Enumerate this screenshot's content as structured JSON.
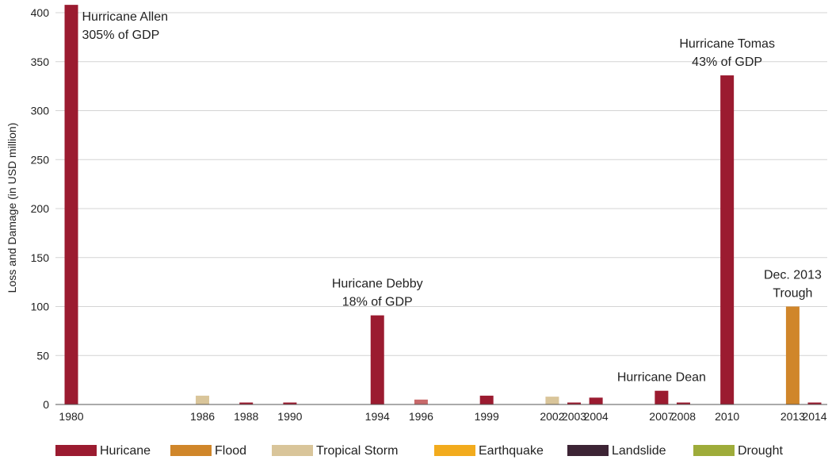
{
  "chart_data": {
    "type": "bar",
    "ylabel": "Loss and Damage (in USD million)",
    "xlabel": "",
    "ylim": [
      0,
      400
    ],
    "yticks": [
      0,
      50,
      100,
      150,
      200,
      250,
      300,
      350,
      400
    ],
    "grid": "horizontal",
    "legend_position": "bottom",
    "categories": [
      "1980",
      "1986",
      "1988",
      "1990",
      "1994",
      "1996",
      "1999",
      "2002",
      "2003",
      "2004",
      "2007",
      "2008",
      "2010",
      "2013",
      "2014"
    ],
    "bars": [
      {
        "year": "1980",
        "value": 408,
        "type": "Huricane"
      },
      {
        "year": "1986",
        "value": 9,
        "type": "Tropical Storm"
      },
      {
        "year": "1988",
        "value": 2,
        "type": "Huricane"
      },
      {
        "year": "1990",
        "value": 2,
        "type": "Huricane"
      },
      {
        "year": "1994",
        "value": 91,
        "type": "Huricane"
      },
      {
        "year": "1996",
        "value": 5,
        "type": "Huricane",
        "color": "#c8696a"
      },
      {
        "year": "1999",
        "value": 9,
        "type": "Huricane"
      },
      {
        "year": "2002",
        "value": 8,
        "type": "Tropical Storm"
      },
      {
        "year": "2003",
        "value": 2,
        "type": "Huricane"
      },
      {
        "year": "2004",
        "value": 7,
        "type": "Huricane"
      },
      {
        "year": "2007",
        "value": 14,
        "type": "Huricane"
      },
      {
        "year": "2008",
        "value": 2,
        "type": "Huricane"
      },
      {
        "year": "2010",
        "value": 336,
        "type": "Huricane"
      },
      {
        "year": "2013",
        "value": 100,
        "type": "Flood"
      },
      {
        "year": "2014",
        "value": 2,
        "type": "Huricane"
      }
    ],
    "legend": [
      {
        "name": "Huricane",
        "color": "#9b1b30"
      },
      {
        "name": "Flood",
        "color": "#d0862a"
      },
      {
        "name": "Tropical Storm",
        "color": "#d9c59a"
      },
      {
        "name": "Earthquake",
        "color": "#f2ab1d"
      },
      {
        "name": "Landslide",
        "color": "#3d2435"
      },
      {
        "name": "Drought",
        "color": "#9eac3a"
      }
    ],
    "annotations": [
      {
        "lines": [
          "Hurricane Allen",
          "305% of GDP"
        ],
        "year": "1980",
        "value": 408,
        "align": "start"
      },
      {
        "lines": [
          "Huricane Debby",
          "18% of GDP"
        ],
        "year": "1994",
        "value": 91,
        "align": "middle"
      },
      {
        "lines": [
          "Hurricane Dean"
        ],
        "year": "2007",
        "value": 14,
        "align": "middle"
      },
      {
        "lines": [
          "Hurricane Tomas",
          "43% of GDP"
        ],
        "year": "2010",
        "value": 336,
        "align": "middle"
      },
      {
        "lines": [
          "Dec. 2013",
          "Trough"
        ],
        "year": "2013",
        "value": 100,
        "align": "middle"
      }
    ]
  }
}
